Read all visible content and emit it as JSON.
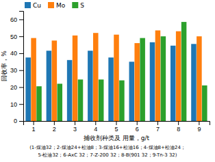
{
  "chart_data": {
    "type": "bar",
    "categories": [
      "1",
      "2",
      "3",
      "4",
      "5",
      "6",
      "7",
      "8",
      "9"
    ],
    "series": [
      {
        "name": "Cu",
        "values": [
          37.5,
          41.5,
          36.0,
          41.5,
          37.5,
          35.0,
          46.5,
          44.5,
          45.5
        ]
      },
      {
        "name": "Mo",
        "values": [
          49.0,
          47.5,
          50.5,
          52.0,
          51.0,
          46.0,
          53.5,
          53.0,
          50.0
        ]
      },
      {
        "name": "S",
        "values": [
          20.5,
          22.0,
          24.5,
          24.5,
          24.0,
          49.0,
          50.0,
          58.5,
          21.0
        ]
      }
    ],
    "xlabel": "捕收剂种类及 用量，g/t",
    "ylabel": "回收率，%",
    "annotations": [
      "(1-煤油32；2-煤油24+松油8；3-煤油16+松油16；4-煤油8+松油24；",
      "5-松油32；6-AxC 32；7-Z-200 32；8-B(901 32；9-Tn-3 32)"
    ],
    "ylim": [
      0,
      65
    ],
    "yticks": [
      0,
      10,
      20,
      30,
      40,
      50,
      60
    ],
    "legend": "upper left",
    "grid": false
  }
}
